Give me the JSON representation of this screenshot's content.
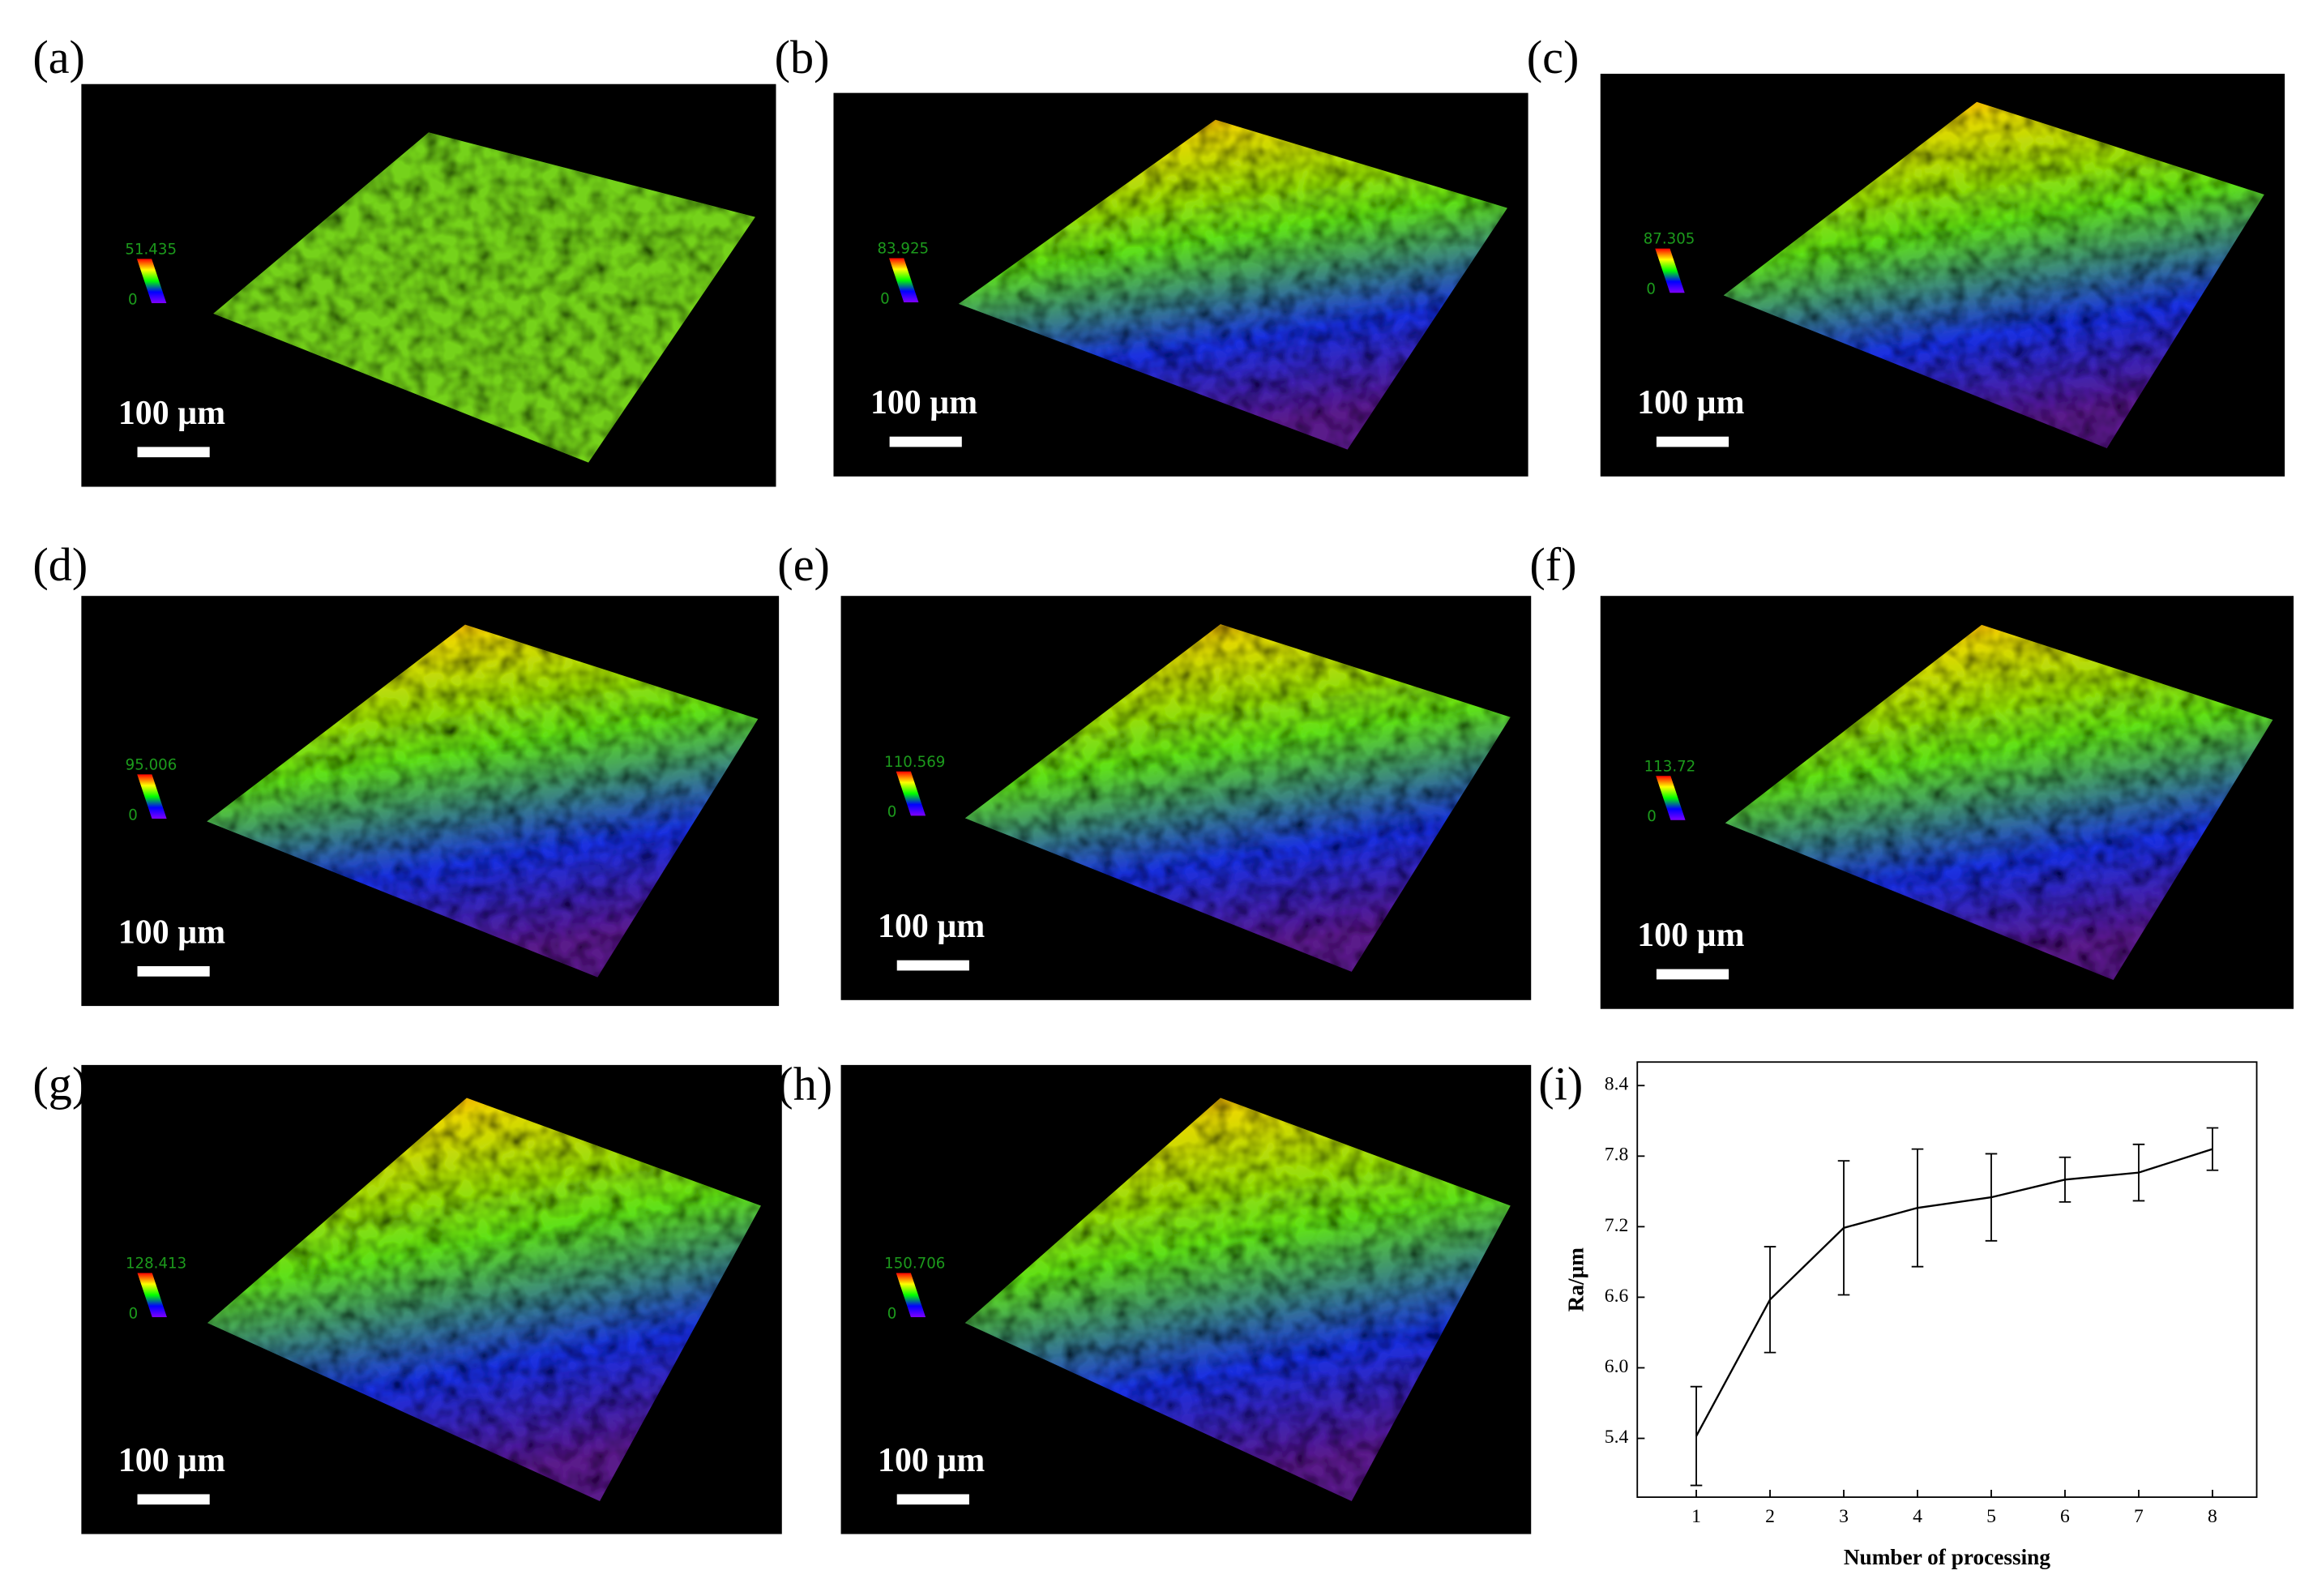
{
  "panels": [
    {
      "label": "(a)",
      "scale_bar": "100 µm",
      "colorbar_max": "51.435",
      "colorbar_min": "0"
    },
    {
      "label": "(b)",
      "scale_bar": "100 µm",
      "colorbar_max": "83.925",
      "colorbar_min": "0"
    },
    {
      "label": "(c)",
      "scale_bar": "100 µm",
      "colorbar_max": "87.305",
      "colorbar_min": "0"
    },
    {
      "label": "(d)",
      "scale_bar": "100 µm",
      "colorbar_max": "95.006",
      "colorbar_min": "0"
    },
    {
      "label": "(e)",
      "scale_bar": "100 µm",
      "colorbar_max": "110.569",
      "colorbar_min": "0"
    },
    {
      "label": "(f)",
      "scale_bar": "100 µm",
      "colorbar_max": "113.72",
      "colorbar_min": "0"
    },
    {
      "label": "(g)",
      "scale_bar": "100 µm",
      "colorbar_max": "128.413",
      "colorbar_min": "0"
    },
    {
      "label": "(h)",
      "scale_bar": "100 µm",
      "colorbar_max": "150.706",
      "colorbar_min": "0"
    }
  ],
  "chart_data": {
    "type": "line",
    "label": "(i)",
    "x_label": "Number of processing",
    "y_label": "Ra/µm",
    "x": [
      1,
      2,
      3,
      4,
      5,
      6,
      7,
      8
    ],
    "series": [
      {
        "color": "#000000",
        "values": [
          5.42,
          6.58,
          7.19,
          7.36,
          7.45,
          7.6,
          7.66,
          7.86
        ],
        "errors": [
          0.42,
          0.45,
          0.57,
          0.5,
          0.37,
          0.19,
          0.24,
          0.18
        ]
      }
    ],
    "xlim": [
      0.2,
      8.6
    ],
    "ylim": [
      4.9,
      8.6
    ],
    "xticks": [
      1,
      2,
      3,
      4,
      5,
      6,
      7,
      8
    ],
    "yticks": [
      5.4,
      {
        "value": 6,
        "label": "6.0"
      },
      6.6,
      7.2,
      7.8,
      8.4
    ]
  }
}
